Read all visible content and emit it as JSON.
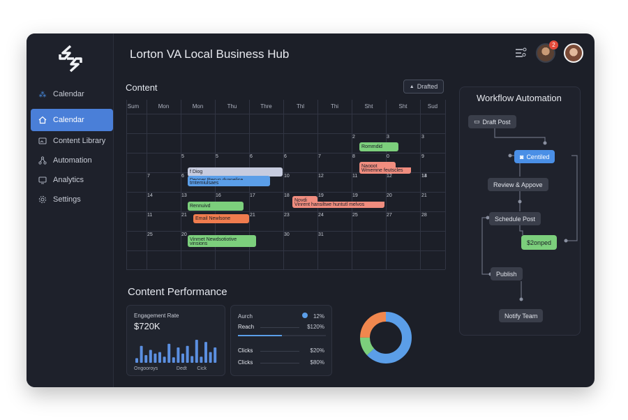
{
  "app": {
    "title": "Lorton VA Local Business Hub"
  },
  "sidebar": {
    "header_label": "Calendar",
    "items": [
      {
        "label": "Calendar",
        "icon": "home-icon",
        "active": true
      },
      {
        "label": "Content Library",
        "icon": "image-icon"
      },
      {
        "label": "Automation",
        "icon": "nodes-icon"
      },
      {
        "label": "Analytics",
        "icon": "monitor-icon"
      },
      {
        "label": "Settings",
        "icon": "gear-icon"
      }
    ]
  },
  "header": {
    "notification_count": "2"
  },
  "content": {
    "label": "Content",
    "filter_button": "Drafted",
    "days": [
      "Sum",
      "Mon",
      "Mon",
      "Thu",
      "Thre",
      "Thl",
      "Thi",
      "Sht",
      "Sht",
      "Sud"
    ],
    "numbers": [
      {
        "t": "2"
      },
      {
        "t": "3"
      },
      {
        "t": "3"
      },
      {
        "t": "5"
      },
      {
        "t": "5"
      },
      {
        "t": "6"
      },
      {
        "t": "6"
      },
      {
        "t": "7"
      },
      {
        "t": "8"
      },
      {
        "t": "0"
      },
      {
        "t": "9"
      },
      {
        "t": "7"
      },
      {
        "t": "6"
      },
      {
        "t": "10"
      },
      {
        "t": "12"
      },
      {
        "t": "11"
      },
      {
        "t": "12"
      },
      {
        "t": "13"
      },
      {
        "t": "14"
      },
      {
        "t": "14"
      },
      {
        "t": "13"
      },
      {
        "t": "16"
      },
      {
        "t": "17"
      },
      {
        "t": "18"
      },
      {
        "t": "19"
      },
      {
        "t": "19"
      },
      {
        "t": "20"
      },
      {
        "t": "21"
      },
      {
        "t": "11"
      },
      {
        "t": "21"
      },
      {
        "t": "21"
      },
      {
        "t": "23"
      },
      {
        "t": "24"
      },
      {
        "t": "25"
      },
      {
        "t": "27"
      },
      {
        "t": "28"
      },
      {
        "t": "25"
      },
      {
        "t": "20"
      },
      {
        "t": "30"
      },
      {
        "t": "31"
      }
    ],
    "events": [
      {
        "text": "Rommdid",
        "color": "green"
      },
      {
        "text": "Naopot",
        "color": "salmon"
      },
      {
        "text": "Wmemne feutscles",
        "color": "salmon"
      },
      {
        "text": "f Diog",
        "color": "lav"
      },
      {
        "text": "Deoner Resvo dvanelise",
        "color": "blue"
      },
      {
        "text": "tmtemiulsaes",
        "color": "blue"
      },
      {
        "text": "Noydi",
        "color": "salmon"
      },
      {
        "text": "Vinrent hansiltwe huntutl melvos",
        "color": "salmon"
      },
      {
        "text": "Rennuivd",
        "color": "green"
      },
      {
        "text": "Email Newlsone",
        "color": "orange"
      },
      {
        "text": "Vinmet Newdsotiotive",
        "color": "green"
      },
      {
        "text": "vinsions",
        "color": "green"
      }
    ]
  },
  "performance": {
    "title": "Content Performance",
    "engagement": {
      "label": "Engagement Rate",
      "value": "$720K",
      "axis": [
        "Ongooroys",
        "Dedt",
        "Cick"
      ],
      "bars": [
        0.15,
        0.55,
        0.25,
        0.42,
        0.3,
        0.35,
        0.2,
        0.62,
        0.18,
        0.5,
        0.3,
        0.55,
        0.22,
        0.75,
        0.2,
        0.68,
        0.35,
        0.5
      ]
    },
    "stats": {
      "rows": [
        {
          "label": "Aurch",
          "value": "12%"
        },
        {
          "label": "Reach",
          "value": "$120%"
        },
        {
          "label": "Clicks",
          "value": "$20%"
        },
        {
          "label": "Clicks",
          "value": "$80%"
        }
      ]
    },
    "donut": {
      "segments": [
        {
          "value": 0.63,
          "color": "#5b9ee8"
        },
        {
          "value": 0.12,
          "color": "#7ccf7c"
        },
        {
          "value": 0.25,
          "color": "#f0874e"
        }
      ]
    }
  },
  "workflow": {
    "title": "Workflow Automation",
    "nodes": {
      "draft": "Draft Post",
      "certified": "Centiled",
      "review": "Review & Appove",
      "schedule": "Schedule Post",
      "approved": "$2onped",
      "publish": "Publish",
      "notify": "Notify Team"
    }
  }
}
